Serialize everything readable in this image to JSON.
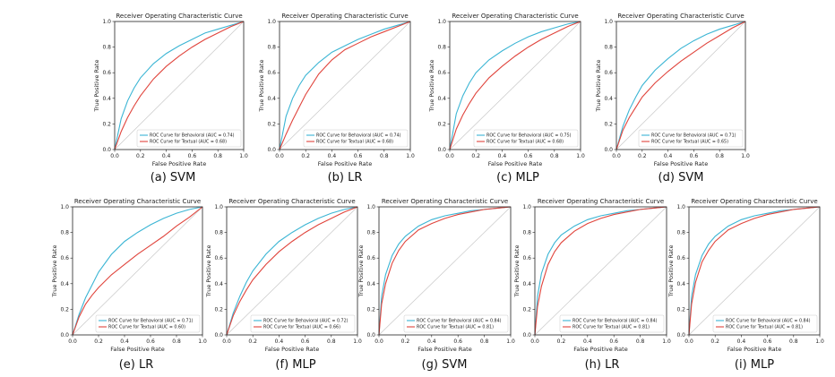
{
  "figure": {
    "panels": [
      {
        "caption": "(a) SVM"
      },
      {
        "caption": "(b) LR"
      },
      {
        "caption": "(c) MLP"
      },
      {
        "caption": "(d) SVM"
      },
      {
        "caption": "(e) LR"
      },
      {
        "caption": "(f) MLP"
      },
      {
        "caption": "(g) SVM"
      },
      {
        "caption": "(h) LR"
      },
      {
        "caption": "(i) MLP"
      }
    ]
  },
  "chart_data": [
    {
      "type": "line",
      "title": "Receiver Operating Characteristic Curve",
      "xlabel": "False Positive Rate",
      "ylabel": "True Positive Rate",
      "xlim": [
        0,
        1
      ],
      "ylim": [
        0,
        1
      ],
      "xticks": [
        "0.0",
        "0.2",
        "0.4",
        "0.6",
        "0.8",
        "1.0"
      ],
      "yticks": [
        "0.0",
        "0.2",
        "0.4",
        "0.6",
        "0.8",
        "1.0"
      ],
      "legend_position": "lower-right",
      "diagonal": true,
      "series": [
        {
          "name": "ROC Curve for Behavioral (AUC = 0.74)",
          "color": "#3bb5d4",
          "x": [
            0,
            0.05,
            0.1,
            0.15,
            0.2,
            0.3,
            0.4,
            0.5,
            0.6,
            0.7,
            0.8,
            0.9,
            1
          ],
          "y": [
            0,
            0.24,
            0.38,
            0.48,
            0.56,
            0.67,
            0.75,
            0.81,
            0.86,
            0.91,
            0.94,
            0.97,
            1
          ]
        },
        {
          "name": "ROC Curve for Textual (AUC = 0.68)",
          "color": "#e0443c",
          "x": [
            0,
            0.05,
            0.1,
            0.15,
            0.2,
            0.3,
            0.4,
            0.5,
            0.6,
            0.7,
            0.8,
            0.9,
            1
          ],
          "y": [
            0,
            0.14,
            0.25,
            0.34,
            0.42,
            0.55,
            0.65,
            0.73,
            0.8,
            0.86,
            0.91,
            0.96,
            1
          ]
        }
      ]
    },
    {
      "type": "line",
      "title": "Receiver Operating Characteristic Curve",
      "xlabel": "False Positive Rate",
      "ylabel": "True Positive Rate",
      "xlim": [
        0,
        1
      ],
      "ylim": [
        0,
        1
      ],
      "xticks": [
        "0.0",
        "0.2",
        "0.4",
        "0.6",
        "0.8",
        "1.0"
      ],
      "yticks": [
        "0.0",
        "0.2",
        "0.4",
        "0.6",
        "0.8",
        "1.0"
      ],
      "legend_position": "lower-right",
      "diagonal": true,
      "series": [
        {
          "name": "ROC Curve for Behavioral (AUC = 0.74)",
          "color": "#3bb5d4",
          "x": [
            0,
            0.05,
            0.1,
            0.15,
            0.2,
            0.3,
            0.4,
            0.5,
            0.6,
            0.7,
            0.8,
            0.9,
            1
          ],
          "y": [
            0,
            0.26,
            0.4,
            0.5,
            0.58,
            0.68,
            0.76,
            0.81,
            0.86,
            0.9,
            0.94,
            0.97,
            1
          ]
        },
        {
          "name": "ROC Curve for Textual (AUC = 0.68)",
          "color": "#e0443c",
          "x": [
            0,
            0.05,
            0.1,
            0.15,
            0.2,
            0.3,
            0.4,
            0.5,
            0.6,
            0.7,
            0.8,
            0.9,
            1
          ],
          "y": [
            0,
            0.12,
            0.23,
            0.33,
            0.43,
            0.59,
            0.7,
            0.78,
            0.83,
            0.88,
            0.92,
            0.96,
            1
          ]
        }
      ]
    },
    {
      "type": "line",
      "title": "Receiver Operating Characteristic Curve",
      "xlabel": "False Positive Rate",
      "ylabel": "True Positive Rate",
      "xlim": [
        0,
        1
      ],
      "ylim": [
        0,
        1
      ],
      "xticks": [
        "0.0",
        "0.2",
        "0.4",
        "0.6",
        "0.8",
        "1.0"
      ],
      "yticks": [
        "0.0",
        "0.2",
        "0.4",
        "0.6",
        "0.8",
        "1.0"
      ],
      "legend_position": "lower-right",
      "diagonal": true,
      "series": [
        {
          "name": "ROC Curve for Behavioral (AUC = 0.75)",
          "color": "#3bb5d4",
          "x": [
            0,
            0.05,
            0.1,
            0.15,
            0.2,
            0.3,
            0.4,
            0.5,
            0.6,
            0.7,
            0.8,
            0.9,
            1
          ],
          "y": [
            0,
            0.28,
            0.42,
            0.52,
            0.6,
            0.7,
            0.77,
            0.83,
            0.88,
            0.92,
            0.95,
            0.98,
            1
          ]
        },
        {
          "name": "ROC Curve for Textual (AUC = 0.68)",
          "color": "#e0443c",
          "x": [
            0,
            0.05,
            0.1,
            0.15,
            0.2,
            0.3,
            0.4,
            0.5,
            0.6,
            0.7,
            0.8,
            0.9,
            1
          ],
          "y": [
            0,
            0.16,
            0.27,
            0.36,
            0.44,
            0.56,
            0.65,
            0.73,
            0.8,
            0.86,
            0.91,
            0.96,
            1
          ]
        }
      ]
    },
    {
      "type": "line",
      "title": "Receiver Operating Characteristic Curve",
      "xlabel": "False Positive Rate",
      "ylabel": "True Positive Rate",
      "xlim": [
        0,
        1
      ],
      "ylim": [
        0,
        1
      ],
      "xticks": [
        "0.0",
        "0.2",
        "0.4",
        "0.6",
        "0.8",
        "1.0"
      ],
      "yticks": [
        "0.0",
        "0.2",
        "0.4",
        "0.6",
        "0.8",
        "1.0"
      ],
      "legend_position": "lower-right",
      "diagonal": true,
      "series": [
        {
          "name": "ROC Curve for Behavioral (AUC = 0.71)",
          "color": "#3bb5d4",
          "x": [
            0,
            0.05,
            0.1,
            0.15,
            0.2,
            0.3,
            0.4,
            0.5,
            0.6,
            0.7,
            0.8,
            0.9,
            1
          ],
          "y": [
            0,
            0.18,
            0.31,
            0.41,
            0.5,
            0.62,
            0.71,
            0.79,
            0.85,
            0.9,
            0.94,
            0.97,
            1
          ]
        },
        {
          "name": "ROC Curve for Textual (AUC = 0.65)",
          "color": "#e0443c",
          "x": [
            0,
            0.05,
            0.1,
            0.15,
            0.2,
            0.3,
            0.4,
            0.5,
            0.6,
            0.7,
            0.8,
            0.9,
            1
          ],
          "y": [
            0,
            0.15,
            0.25,
            0.33,
            0.41,
            0.52,
            0.61,
            0.69,
            0.76,
            0.83,
            0.89,
            0.95,
            1
          ]
        }
      ]
    },
    {
      "type": "line",
      "title": "Receiver Operating Characteristic Curve",
      "xlabel": "False Positive Rate",
      "ylabel": "True Positive Rate",
      "xlim": [
        0,
        1
      ],
      "ylim": [
        0,
        1
      ],
      "xticks": [
        "0.0",
        "0.2",
        "0.4",
        "0.6",
        "0.8",
        "1.0"
      ],
      "yticks": [
        "0.0",
        "0.2",
        "0.4",
        "0.6",
        "0.8",
        "1.0"
      ],
      "legend_position": "lower-right",
      "diagonal": true,
      "series": [
        {
          "name": "ROC Curve for Behavioral (AUC = 0.71)",
          "color": "#3bb5d4",
          "x": [
            0,
            0.05,
            0.1,
            0.15,
            0.2,
            0.3,
            0.4,
            0.5,
            0.6,
            0.7,
            0.8,
            0.9,
            1
          ],
          "y": [
            0,
            0.16,
            0.29,
            0.39,
            0.49,
            0.63,
            0.73,
            0.8,
            0.86,
            0.91,
            0.95,
            0.98,
            1
          ]
        },
        {
          "name": "ROC Curve for Textual (AUC = 0.60)",
          "color": "#e0443c",
          "x": [
            0,
            0.05,
            0.1,
            0.15,
            0.2,
            0.3,
            0.4,
            0.5,
            0.6,
            0.7,
            0.8,
            0.9,
            1
          ],
          "y": [
            0,
            0.14,
            0.24,
            0.31,
            0.37,
            0.47,
            0.55,
            0.63,
            0.7,
            0.77,
            0.85,
            0.92,
            1
          ]
        }
      ]
    },
    {
      "type": "line",
      "title": "Receiver Operating Characteristic Curve",
      "xlabel": "False Positive Rate",
      "ylabel": "True Positive Rate",
      "xlim": [
        0,
        1
      ],
      "ylim": [
        0,
        1
      ],
      "xticks": [
        "0.0",
        "0.2",
        "0.4",
        "0.6",
        "0.8",
        "1.0"
      ],
      "yticks": [
        "0.0",
        "0.2",
        "0.4",
        "0.6",
        "0.8",
        "1.0"
      ],
      "legend_position": "lower-right",
      "diagonal": true,
      "series": [
        {
          "name": "ROC Curve for Behavioral (AUC = 0.72)",
          "color": "#3bb5d4",
          "x": [
            0,
            0.05,
            0.1,
            0.15,
            0.2,
            0.3,
            0.4,
            0.5,
            0.6,
            0.7,
            0.8,
            0.9,
            1
          ],
          "y": [
            0,
            0.17,
            0.3,
            0.41,
            0.5,
            0.63,
            0.73,
            0.8,
            0.86,
            0.91,
            0.95,
            0.98,
            1
          ]
        },
        {
          "name": "ROC Curve for Textual (AUC = 0.66)",
          "color": "#e0443c",
          "x": [
            0,
            0.05,
            0.1,
            0.15,
            0.2,
            0.3,
            0.4,
            0.5,
            0.6,
            0.7,
            0.8,
            0.9,
            1
          ],
          "y": [
            0,
            0.15,
            0.26,
            0.35,
            0.43,
            0.55,
            0.65,
            0.73,
            0.8,
            0.86,
            0.91,
            0.96,
            1
          ]
        }
      ]
    },
    {
      "type": "line",
      "title": "Receiver Operating Characteristic Curve",
      "xlabel": "False Positive Rate",
      "ylabel": "True Positive Rate",
      "xlim": [
        0,
        1
      ],
      "ylim": [
        0,
        1
      ],
      "xticks": [
        "0.0",
        "0.2",
        "0.4",
        "0.6",
        "0.8",
        "1.0"
      ],
      "yticks": [
        "0.0",
        "0.2",
        "0.4",
        "0.6",
        "0.8",
        "1.0"
      ],
      "legend_position": "lower-right",
      "diagonal": true,
      "series": [
        {
          "name": "ROC Curve for Behavioral (AUC = 0.84)",
          "color": "#3bb5d4",
          "x": [
            0,
            0.02,
            0.05,
            0.1,
            0.15,
            0.2,
            0.3,
            0.4,
            0.5,
            0.6,
            0.7,
            0.8,
            0.9,
            1
          ],
          "y": [
            0,
            0.3,
            0.47,
            0.62,
            0.71,
            0.77,
            0.85,
            0.9,
            0.93,
            0.95,
            0.97,
            0.98,
            0.99,
            1
          ]
        },
        {
          "name": "ROC Curve for Textual (AUC = 0.81)",
          "color": "#e0443c",
          "x": [
            0,
            0.02,
            0.05,
            0.1,
            0.15,
            0.2,
            0.3,
            0.4,
            0.5,
            0.6,
            0.7,
            0.8,
            0.9,
            1
          ],
          "y": [
            0,
            0.24,
            0.4,
            0.56,
            0.66,
            0.73,
            0.82,
            0.87,
            0.91,
            0.94,
            0.96,
            0.98,
            0.99,
            1
          ]
        }
      ]
    },
    {
      "type": "line",
      "title": "Receiver Operating Characteristic Curve",
      "xlabel": "False Positive Rate",
      "ylabel": "True Positive Rate",
      "xlim": [
        0,
        1
      ],
      "ylim": [
        0,
        1
      ],
      "xticks": [
        "0.0",
        "0.2",
        "0.4",
        "0.6",
        "0.8",
        "1.0"
      ],
      "yticks": [
        "0.0",
        "0.2",
        "0.4",
        "0.6",
        "0.8",
        "1.0"
      ],
      "legend_position": "lower-right",
      "diagonal": true,
      "series": [
        {
          "name": "ROC Curve for Behavioral (AUC = 0.84)",
          "color": "#3bb5d4",
          "x": [
            0,
            0.02,
            0.05,
            0.1,
            0.15,
            0.2,
            0.3,
            0.4,
            0.5,
            0.6,
            0.7,
            0.8,
            0.9,
            1
          ],
          "y": [
            0,
            0.3,
            0.48,
            0.63,
            0.72,
            0.78,
            0.85,
            0.9,
            0.93,
            0.95,
            0.97,
            0.98,
            0.99,
            1
          ]
        },
        {
          "name": "ROC Curve for Textual (AUC = 0.81)",
          "color": "#e0443c",
          "x": [
            0,
            0.02,
            0.05,
            0.1,
            0.15,
            0.2,
            0.3,
            0.4,
            0.5,
            0.6,
            0.7,
            0.8,
            0.9,
            1
          ],
          "y": [
            0,
            0.22,
            0.38,
            0.55,
            0.65,
            0.72,
            0.81,
            0.87,
            0.91,
            0.94,
            0.96,
            0.98,
            0.99,
            1
          ]
        }
      ]
    },
    {
      "type": "line",
      "title": "Receiver Operating Characteristic Curve",
      "xlabel": "False Positive Rate",
      "ylabel": "True Positive Rate",
      "xlim": [
        0,
        1
      ],
      "ylim": [
        0,
        1
      ],
      "xticks": [
        "0.0",
        "0.2",
        "0.4",
        "0.6",
        "0.8",
        "1.0"
      ],
      "yticks": [
        "0.0",
        "0.2",
        "0.4",
        "0.6",
        "0.8",
        "1.0"
      ],
      "legend_position": "lower-right",
      "diagonal": true,
      "series": [
        {
          "name": "ROC Curve for Behavioral (AUC = 0.84)",
          "color": "#3bb5d4",
          "x": [
            0,
            0.02,
            0.05,
            0.1,
            0.15,
            0.2,
            0.3,
            0.4,
            0.5,
            0.6,
            0.7,
            0.8,
            0.9,
            1
          ],
          "y": [
            0,
            0.3,
            0.47,
            0.62,
            0.71,
            0.77,
            0.85,
            0.9,
            0.93,
            0.95,
            0.97,
            0.98,
            0.99,
            1
          ]
        },
        {
          "name": "ROC Curve for Textual (AUC = 0.81)",
          "color": "#e0443c",
          "x": [
            0,
            0.02,
            0.05,
            0.1,
            0.15,
            0.2,
            0.3,
            0.4,
            0.5,
            0.6,
            0.7,
            0.8,
            0.9,
            1
          ],
          "y": [
            0,
            0.24,
            0.41,
            0.57,
            0.66,
            0.73,
            0.82,
            0.87,
            0.91,
            0.94,
            0.96,
            0.98,
            0.99,
            1
          ]
        }
      ]
    }
  ]
}
